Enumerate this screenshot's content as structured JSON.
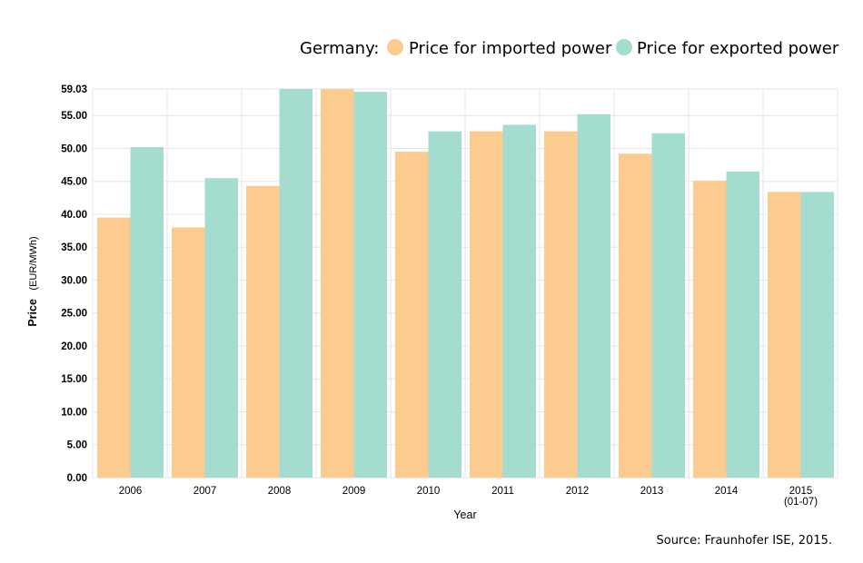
{
  "chart_data": {
    "type": "bar",
    "legend": {
      "prefix": "Germany:",
      "placement": "top-right"
    },
    "categories": [
      "2006",
      "2007",
      "2008",
      "2009",
      "2010",
      "2011",
      "2012",
      "2013",
      "2014",
      "2015"
    ],
    "category_sublabels": [
      "",
      "",
      "",
      "",
      "",
      "",
      "",
      "",
      "",
      "(01-07)"
    ],
    "series": [
      {
        "name": "Price for imported power",
        "color": "#fbcb8f",
        "values": [
          39.5,
          38.0,
          44.3,
          59.03,
          49.5,
          52.6,
          52.6,
          49.2,
          45.1,
          43.4
        ]
      },
      {
        "name": "Price for exported power",
        "color": "#a5dcd0",
        "values": [
          50.2,
          45.5,
          59.03,
          58.6,
          52.6,
          53.6,
          55.2,
          52.3,
          46.5,
          43.4
        ]
      }
    ],
    "ylabel_bold": "Price",
    "ylabel_unit": "(EUR/MWh)",
    "xlabel": "Year",
    "ylim": [
      0,
      59.03
    ],
    "yticks": [
      "0.00",
      "5.00",
      "10.00",
      "15.00",
      "20.00",
      "25.00",
      "30.00",
      "35.00",
      "40.00",
      "45.00",
      "50.00",
      "55.00",
      "59.03"
    ],
    "grid": true,
    "gridline_color": "#e6e6e6",
    "source": "Source: Fraunhofer ISE, 2015."
  }
}
